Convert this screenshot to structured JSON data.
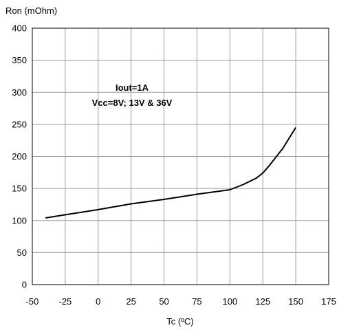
{
  "chart_data": {
    "type": "line",
    "ylabel": "Ron (mOhm)",
    "xlabel": "Tc (ºC)",
    "xlim": [
      -50,
      175
    ],
    "ylim": [
      0,
      400
    ],
    "x_ticks": [
      -50,
      -25,
      0,
      25,
      50,
      75,
      100,
      125,
      150,
      175
    ],
    "y_ticks": [
      0,
      50,
      100,
      150,
      200,
      250,
      300,
      350,
      400
    ],
    "grid": true,
    "annotations": [
      "Iout=1A",
      "Vcc=8V; 13V & 36V"
    ],
    "series": [
      {
        "color": "#000000",
        "x": [
          -40,
          -25,
          0,
          25,
          50,
          75,
          100,
          110,
          120,
          125,
          130,
          140,
          150
        ],
        "y": [
          104,
          109,
          117,
          126,
          133,
          141,
          148,
          156,
          166,
          174,
          186,
          212,
          245
        ]
      }
    ]
  }
}
